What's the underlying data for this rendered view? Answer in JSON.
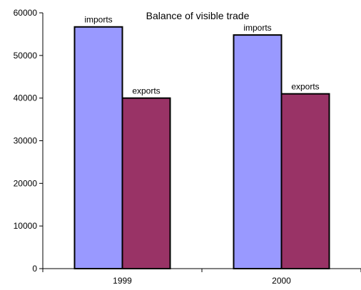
{
  "chart_data": {
    "type": "bar",
    "title": "Balance of visible trade",
    "xlabel": "",
    "ylabel": "",
    "categories": [
      "1999",
      "2000"
    ],
    "series": [
      {
        "name": "imports",
        "values": [
          56700,
          54800
        ],
        "color": "#9999ff"
      },
      {
        "name": "exports",
        "values": [
          40000,
          41000
        ],
        "color": "#993366"
      }
    ],
    "ylim": [
      0,
      60000
    ],
    "yticks": [
      "0",
      "10000",
      "20000",
      "30000",
      "40000",
      "50000",
      "60000"
    ],
    "yticks_values": [
      0,
      10000,
      20000,
      30000,
      40000,
      50000,
      60000
    ],
    "data_labels": "series-name-above-bar",
    "grid": false,
    "legend": "none"
  }
}
